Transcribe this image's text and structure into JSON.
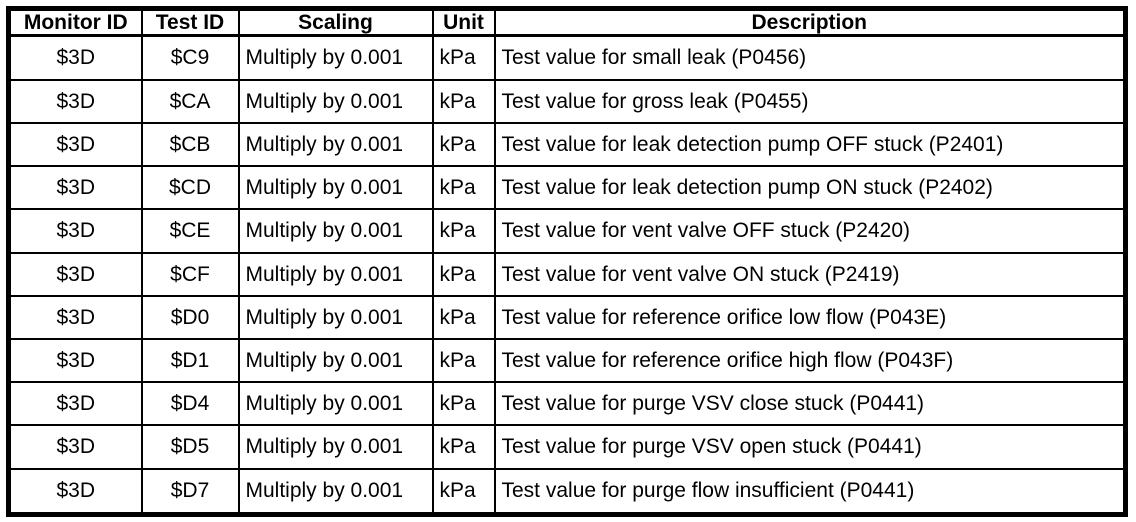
{
  "table": {
    "name": "monitor-test-id-scaling-table",
    "columns": [
      {
        "label": "Monitor ID"
      },
      {
        "label": "Test ID"
      },
      {
        "label": "Scaling"
      },
      {
        "label": "Unit"
      },
      {
        "label": "Description"
      }
    ],
    "rows": [
      [
        "$3D",
        "$C9",
        "Multiply by 0.001",
        "kPa",
        "Test value for small leak (P0456)"
      ],
      [
        "$3D",
        "$CA",
        "Multiply by 0.001",
        "kPa",
        "Test value for gross leak (P0455)"
      ],
      [
        "$3D",
        "$CB",
        "Multiply by 0.001",
        "kPa",
        "Test value for leak detection pump OFF stuck (P2401)"
      ],
      [
        "$3D",
        "$CD",
        "Multiply by 0.001",
        "kPa",
        "Test value for leak detection pump ON stuck (P2402)"
      ],
      [
        "$3D",
        "$CE",
        "Multiply by 0.001",
        "kPa",
        "Test value for vent valve OFF stuck (P2420)"
      ],
      [
        "$3D",
        "$CF",
        "Multiply by 0.001",
        "kPa",
        "Test value for vent valve ON stuck (P2419)"
      ],
      [
        "$3D",
        "$D0",
        "Multiply by 0.001",
        "kPa",
        "Test value for reference orifice low flow (P043E)"
      ],
      [
        "$3D",
        "$D1",
        "Multiply by 0.001",
        "kPa",
        "Test value for reference orifice high flow (P043F)"
      ],
      [
        "$3D",
        "$D4",
        "Multiply by 0.001",
        "kPa",
        "Test value for purge VSV close stuck (P0441)"
      ],
      [
        "$3D",
        "$D5",
        "Multiply by 0.001",
        "kPa",
        "Test value for purge VSV open stuck (P0441)"
      ],
      [
        "$3D",
        "$D7",
        "Multiply by 0.001",
        "kPa",
        "Test value for purge flow insufficient (P0441)"
      ]
    ],
    "colors": {
      "border": "#000000",
      "text": "#000000",
      "background": "#ffffff"
    }
  }
}
